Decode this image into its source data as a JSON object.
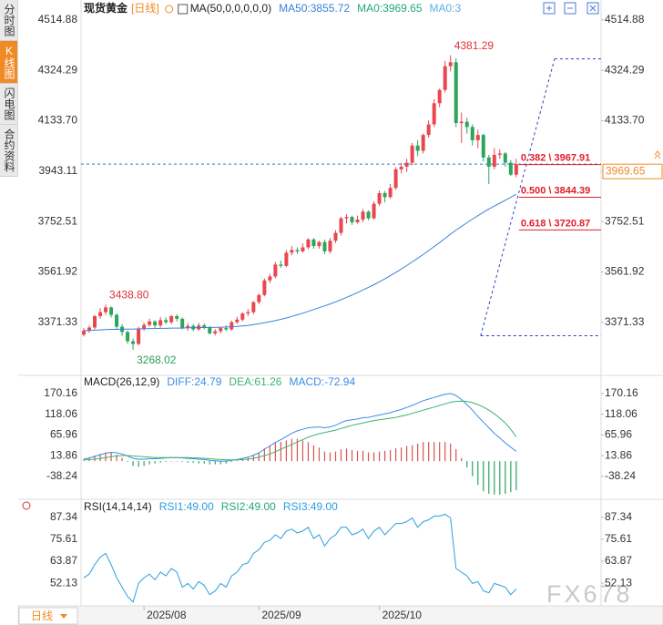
{
  "sidebar": {
    "tabs": [
      "分时图",
      "K线图",
      "闪电图",
      "合约资料"
    ],
    "active": 1
  },
  "period_selector": "日线",
  "watermark": "FX678",
  "chart_data": [
    {
      "type": "candlestick",
      "title": "现货黄金",
      "period": "[日线]",
      "indicator": "MA(50,0,0,0,0,0)",
      "up_color": "#e8474f",
      "down_color": "#2da55b",
      "xlim": [
        -0.5,
        94.5
      ],
      "ylim": [
        3178,
        4542
      ],
      "yticks": [
        4514.88,
        4324.29,
        {
          "value": 4133.7,
          "label": "4133.70"
        },
        3943.11,
        3752.51,
        3561.92,
        3371.33
      ],
      "open": [
        3325,
        3340,
        3352,
        3395,
        3410,
        3428,
        3400,
        3355,
        3335,
        3300,
        3290,
        3348,
        3362,
        3375,
        3360,
        3380,
        3372,
        3395,
        3385,
        3350,
        3358,
        3345,
        3360,
        3352,
        3330,
        3338,
        3350,
        3345,
        3372,
        3382,
        3405,
        3410,
        3448,
        3475,
        3530,
        3545,
        3590,
        3585,
        3635,
        3645,
        3640,
        3655,
        3685,
        3660,
        3675,
        3640,
        3680,
        3710,
        3765,
        3770,
        3750,
        3760,
        3790,
        3765,
        3820,
        3860,
        3845,
        3880,
        3950,
        3960,
        3975,
        4040,
        4020,
        4080,
        4120,
        4200,
        4250,
        4340,
        4355,
        4125,
        4130,
        4110,
        4060,
        4080,
        3995,
        3960,
        4005,
        4010,
        3975,
        3930
      ],
      "high": [
        3350,
        3360,
        3400,
        3425,
        3438.8,
        3432,
        3405,
        3365,
        3340,
        3310,
        3355,
        3370,
        3385,
        3380,
        3392,
        3390,
        3400,
        3402,
        3390,
        3368,
        3365,
        3370,
        3368,
        3358,
        3346,
        3355,
        3360,
        3378,
        3392,
        3410,
        3422,
        3452,
        3480,
        3538,
        3555,
        3600,
        3605,
        3645,
        3660,
        3655,
        3670,
        3690,
        3690,
        3680,
        3685,
        3690,
        3720,
        3770,
        3780,
        3775,
        3775,
        3800,
        3795,
        3830,
        3870,
        3868,
        3895,
        3958,
        3975,
        3990,
        4050,
        4060,
        4085,
        4135,
        4215,
        4255,
        4360,
        4381.29,
        4370,
        4165,
        4145,
        4120,
        4100,
        4085,
        4005,
        4030,
        4025,
        4015,
        3985,
        3990
      ],
      "low": [
        3318,
        3332,
        3345,
        3385,
        3400,
        3390,
        3345,
        3320,
        3290,
        3268.02,
        3285,
        3340,
        3355,
        3350,
        3352,
        3365,
        3365,
        3375,
        3345,
        3340,
        3338,
        3340,
        3345,
        3325,
        3322,
        3330,
        3338,
        3340,
        3365,
        3375,
        3395,
        3402,
        3440,
        3470,
        3520,
        3538,
        3578,
        3580,
        3625,
        3630,
        3635,
        3648,
        3650,
        3650,
        3630,
        3632,
        3672,
        3700,
        3745,
        3740,
        3745,
        3750,
        3758,
        3760,
        3812,
        3825,
        3840,
        3872,
        3935,
        3940,
        3965,
        4000,
        4010,
        4070,
        4110,
        4185,
        4240,
        4320,
        4110,
        4050,
        4085,
        4040,
        4030,
        3980,
        3895,
        3950,
        3990,
        3960,
        3925,
        3920
      ],
      "close": [
        3340,
        3352,
        3395,
        3410,
        3428,
        3400,
        3355,
        3335,
        3300,
        3290,
        3348,
        3362,
        3375,
        3360,
        3380,
        3372,
        3395,
        3385,
        3350,
        3358,
        3345,
        3360,
        3352,
        3330,
        3338,
        3350,
        3345,
        3372,
        3382,
        3405,
        3410,
        3448,
        3475,
        3530,
        3545,
        3590,
        3585,
        3635,
        3645,
        3640,
        3655,
        3685,
        3660,
        3675,
        3640,
        3680,
        3710,
        3765,
        3770,
        3750,
        3760,
        3790,
        3765,
        3820,
        3860,
        3845,
        3880,
        3950,
        3960,
        3975,
        4040,
        4020,
        4080,
        4120,
        4200,
        4250,
        4340,
        4355,
        4125,
        4130,
        4110,
        4060,
        4080,
        3995,
        3960,
        4005,
        4010,
        3975,
        3930,
        3969.65
      ],
      "series": [
        {
          "name": "MA50:3855.72",
          "color": "#3b82d6",
          "values": [
            3340,
            3341,
            3342,
            3343,
            3344,
            3345,
            3345,
            3346,
            3346,
            3346,
            3347,
            3347,
            3348,
            3348,
            3349,
            3349,
            3350,
            3350,
            3350,
            3351,
            3351,
            3352,
            3352,
            3352,
            3353,
            3353,
            3354,
            3355,
            3356,
            3358,
            3360,
            3363,
            3366,
            3370,
            3374,
            3378,
            3383,
            3388,
            3394,
            3400,
            3406,
            3413,
            3420,
            3427,
            3434,
            3441,
            3449,
            3457,
            3466,
            3475,
            3484,
            3494,
            3504,
            3514,
            3525,
            3536,
            3548,
            3560,
            3573,
            3586,
            3600,
            3614,
            3628,
            3643,
            3658,
            3673,
            3689,
            3705,
            3720,
            3734,
            3748,
            3762,
            3775,
            3788,
            3800,
            3811,
            3822,
            3833,
            3844,
            3855.72
          ]
        }
      ],
      "legend_extra": [
        {
          "name": "MA0:3969.65",
          "color": "#23a878"
        },
        {
          "name": "MA0:3",
          "color": "#5aaee8"
        }
      ],
      "last_price": 3969.65,
      "last_price_color": "#f08a24",
      "price_line_color": "#3a6fd8",
      "annotations": [
        {
          "label": "3438.80",
          "index": 4,
          "value": 3438.8,
          "color": "#e0303a",
          "position": "above"
        },
        {
          "label": "3268.02",
          "index": 9,
          "value": 3268.02,
          "color": "#2a9d5c",
          "position": "below"
        },
        {
          "label": "4381.29",
          "index": 67,
          "value": 4381.29,
          "color": "#e0303a",
          "position": "above"
        }
      ],
      "fib": {
        "color": "#2a3fcc",
        "level_color": "#e0202a",
        "start": {
          "index": 72.5,
          "value": 3321.0
        },
        "end": {
          "index": 86,
          "value": 4367.8
        },
        "levels": [
          {
            "label": "0.382 \\ 3967.91",
            "value": 3967.91
          },
          {
            "label": "0.500 \\ 3844.39",
            "value": 3844.39
          },
          {
            "label": "0.618 \\ 3720.87",
            "value": 3720.87
          }
        ]
      }
    },
    {
      "type": "macd",
      "title": "MACD(26,12,9)",
      "xlim": [
        -0.5,
        94.5
      ],
      "ylim": [
        -89,
        211
      ],
      "yticks": [
        170.16,
        118.06,
        65.96,
        13.86,
        -38.24
      ],
      "up_color": "#d9534f",
      "down_color": "#2da55b",
      "series": [
        {
          "name": "DIFF:24.79",
          "type": "line",
          "color": "#3a8ee6",
          "values": [
            5,
            8,
            12,
            16,
            20,
            22,
            21,
            18,
            13,
            7,
            5,
            5,
            6,
            6,
            7,
            8,
            9,
            9,
            8,
            7,
            6,
            5,
            4,
            2,
            1,
            0,
            0,
            2,
            4,
            7,
            10,
            15,
            21,
            30,
            38,
            47,
            54,
            62,
            70,
            76,
            80,
            84,
            85,
            86,
            84,
            86,
            90,
            97,
            102,
            104,
            106,
            109,
            110,
            113,
            116,
            119,
            122,
            126,
            130,
            135,
            140,
            146,
            152,
            156,
            160,
            164,
            168,
            170,
            165,
            155,
            142,
            128,
            112,
            98,
            84,
            70,
            58,
            46,
            35,
            24.79
          ]
        },
        {
          "name": "DEA:61.26",
          "type": "line",
          "color": "#3cb371",
          "values": [
            3,
            4,
            5,
            7,
            9,
            11,
            13,
            14,
            14,
            13,
            12,
            11,
            10,
            9,
            9,
            9,
            9,
            9,
            9,
            9,
            8,
            8,
            7,
            6,
            5,
            4,
            3,
            3,
            3,
            4,
            5,
            7,
            10,
            14,
            18,
            24,
            30,
            36,
            42,
            48,
            54,
            60,
            65,
            69,
            72,
            75,
            78,
            82,
            86,
            90,
            93,
            96,
            99,
            102,
            104,
            106,
            108,
            110,
            113,
            116,
            120,
            124,
            128,
            132,
            136,
            140,
            144,
            148,
            150,
            151,
            150,
            147,
            142,
            136,
            128,
            119,
            108,
            96,
            80,
            61.26
          ]
        },
        {
          "name": "MACD:-72.94",
          "type": "bar",
          "color": "#3a8ee6",
          "values": [
            4,
            8,
            14,
            18,
            22,
            22,
            16,
            8,
            -2,
            -12,
            -14,
            -12,
            -8,
            -6,
            -4,
            -2,
            0,
            0,
            -2,
            -4,
            -4,
            -6,
            -6,
            -8,
            -8,
            -8,
            -6,
            -2,
            2,
            6,
            10,
            16,
            22,
            32,
            40,
            46,
            48,
            52,
            56,
            56,
            52,
            48,
            40,
            34,
            24,
            22,
            24,
            30,
            32,
            28,
            26,
            26,
            22,
            22,
            24,
            26,
            28,
            32,
            34,
            38,
            40,
            44,
            48,
            48,
            48,
            48,
            48,
            44,
            30,
            8,
            -16,
            -38,
            -60,
            -76,
            -82,
            -84,
            -84,
            -82,
            -78,
            -72.94
          ]
        }
      ]
    },
    {
      "type": "line",
      "title": "RSI(14,14,14)",
      "xlim": [
        -0.5,
        94.5
      ],
      "ylim": [
        40,
        96
      ],
      "yticks": [
        87.34,
        75.61,
        63.87,
        52.13
      ],
      "xticks": [
        {
          "value": 11,
          "label": "2025/08"
        },
        {
          "value": 32,
          "label": "2025/09"
        },
        {
          "value": 54,
          "label": "2025/10"
        }
      ],
      "series": [
        {
          "name": "RSI1:49.00",
          "color": "#2a9fe0",
          "values": [
            55,
            57,
            62,
            66,
            68,
            62,
            55,
            50,
            45,
            42,
            52,
            55,
            57,
            54,
            58,
            56,
            60,
            58,
            50,
            52,
            49,
            53,
            51,
            46,
            48,
            52,
            50,
            56,
            58,
            62,
            63,
            68,
            70,
            74,
            75,
            78,
            76,
            80,
            81,
            79,
            80,
            82,
            76,
            78,
            72,
            76,
            78,
            82,
            82,
            78,
            79,
            81,
            76,
            80,
            82,
            78,
            81,
            84,
            84,
            85,
            87,
            82,
            85,
            86,
            88,
            88,
            89,
            87,
            60,
            58,
            56,
            52,
            53,
            48,
            47,
            52,
            51,
            50,
            46,
            49
          ]
        }
      ],
      "legend_extra": [
        {
          "name": "RSI2:49.00",
          "color": "#23a878"
        },
        {
          "name": "RSI3:49.00",
          "color": "#2a9fe0"
        }
      ]
    }
  ]
}
